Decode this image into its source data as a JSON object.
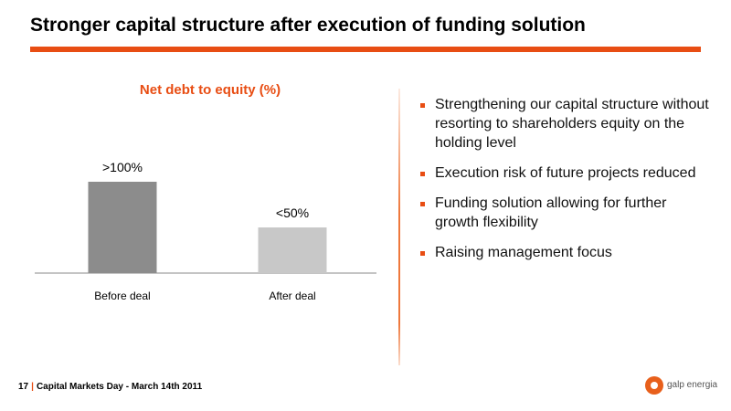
{
  "slide": {
    "title": "Stronger capital structure after execution of funding solution"
  },
  "chart_data": {
    "type": "bar",
    "title": "Net debt to equity (%)",
    "categories": [
      "Before deal",
      "After deal"
    ],
    "values": [
      100,
      50
    ],
    "data_labels": [
      ">100%",
      "<50%"
    ],
    "ylim": [
      0,
      150
    ],
    "grid": false,
    "colors": [
      "#8c8c8c",
      "#c8c8c8"
    ]
  },
  "bullets": [
    "Strengthening our capital structure without resorting to shareholders equity on the holding level",
    "Execution risk of future projects reduced",
    "Funding solution allowing for further growth flexibility",
    "Raising management focus"
  ],
  "footer": {
    "page_number": "17",
    "separator": "|",
    "text": "Capital Markets Day - March 14th 2011"
  },
  "logo": {
    "text": "galp energia",
    "icon": "galp-logo-icon"
  },
  "colors": {
    "accent": "#e84d13",
    "divider": "#ee783c"
  }
}
